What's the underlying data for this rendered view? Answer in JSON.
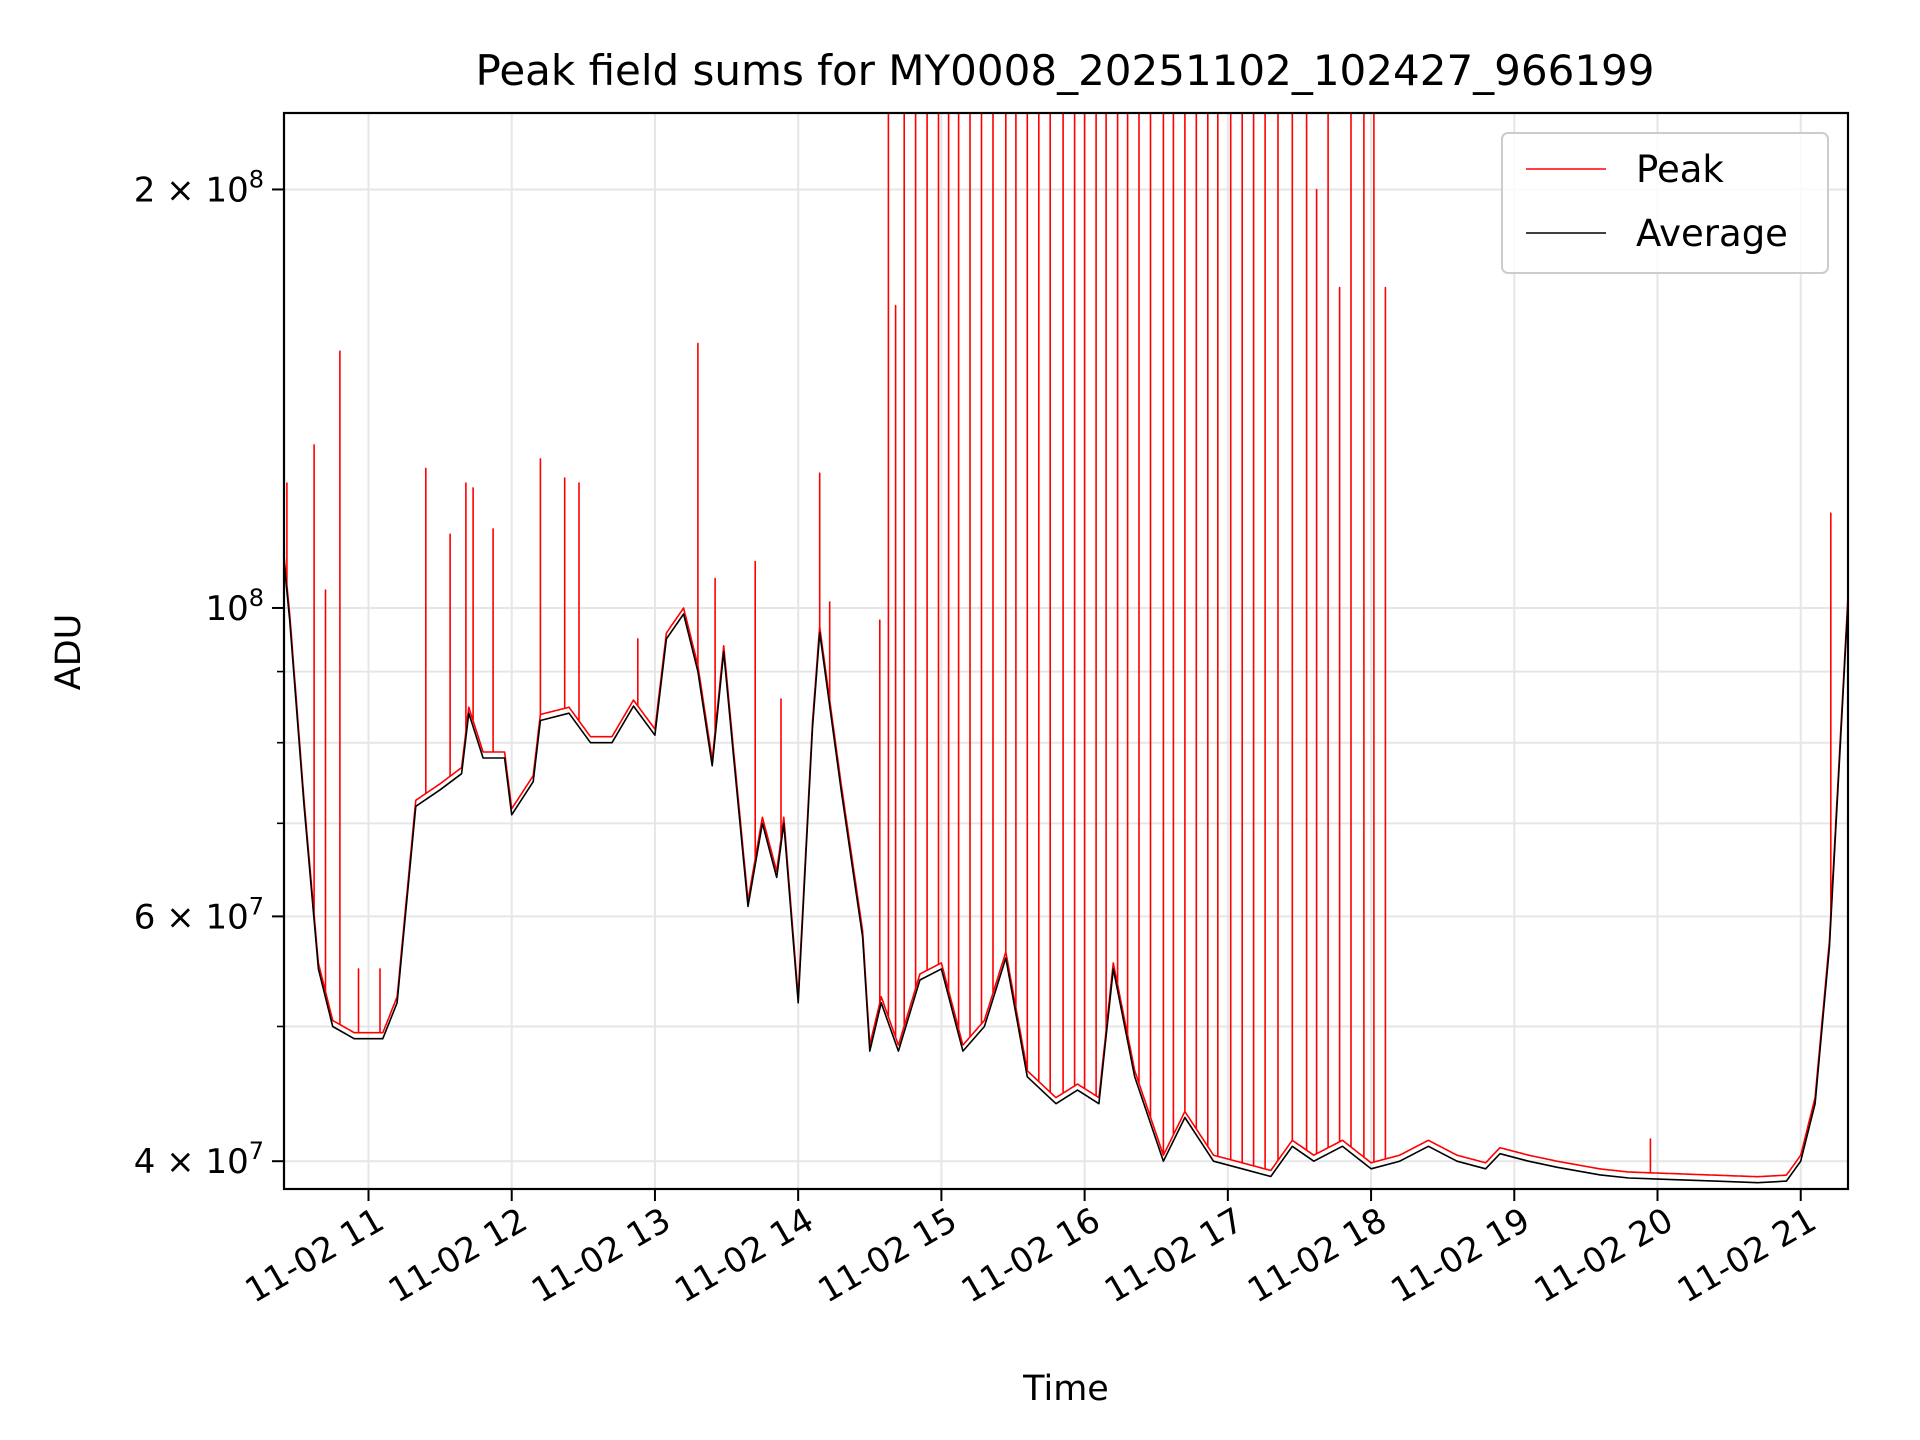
{
  "chart_data": {
    "type": "line",
    "title": "Peak field sums for MY0008_20251102_102427_966199",
    "xlabel": "Time",
    "ylabel": "ADU",
    "yscale": "log",
    "xlim_hours": [
      10.41,
      21.33
    ],
    "ylim": [
      38200000,
      227000000
    ],
    "grid": true,
    "legend_position": "top-right",
    "x_tick_labels": [
      "11-02 11",
      "11-02 12",
      "11-02 13",
      "11-02 14",
      "11-02 15",
      "11-02 16",
      "11-02 17",
      "11-02 18",
      "11-02 19",
      "11-02 20",
      "11-02 21"
    ],
    "x_tick_hours": [
      11,
      12,
      13,
      14,
      15,
      16,
      17,
      18,
      19,
      20,
      21
    ],
    "y_ticks": [
      {
        "value": 40000000,
        "mantissa": "4",
        "exponent": "7"
      },
      {
        "value": 60000000,
        "mantissa": "6",
        "exponent": "7"
      },
      {
        "value": 100000000,
        "mantissa": "",
        "exponent": "8"
      },
      {
        "value": 200000000,
        "mantissa": "2",
        "exponent": "8"
      }
    ],
    "y_minor_ticks": [
      50000000,
      70000000,
      80000000,
      90000000
    ],
    "series": [
      {
        "name": "Peak",
        "color": "#ff0000",
        "baseline_note": "Peak follows the Average curve with sharp upward spikes",
        "spikes": [
          [
            10.43,
            123000000
          ],
          [
            10.62,
            131000000
          ],
          [
            10.7,
            103000000
          ],
          [
            10.8,
            153000000
          ],
          [
            10.93,
            55000000
          ],
          [
            11.08,
            55000000
          ],
          [
            11.4,
            126000000
          ],
          [
            11.57,
            113000000
          ],
          [
            11.68,
            123000000
          ],
          [
            11.73,
            122000000
          ],
          [
            11.87,
            114000000
          ],
          [
            12.2,
            128000000
          ],
          [
            12.37,
            124000000
          ],
          [
            12.47,
            123000000
          ],
          [
            12.88,
            95000000
          ],
          [
            13.3,
            155000000
          ],
          [
            13.42,
            105000000
          ],
          [
            13.7,
            108000000
          ],
          [
            13.88,
            86000000
          ],
          [
            14.15,
            125000000
          ],
          [
            14.22,
            101000000
          ],
          [
            14.57,
            98000000
          ],
          [
            14.63,
            227000000
          ],
          [
            14.68,
            165000000
          ],
          [
            14.74,
            227000000
          ],
          [
            14.82,
            227000000
          ],
          [
            14.9,
            227000000
          ],
          [
            14.98,
            227000000
          ],
          [
            15.05,
            227000000
          ],
          [
            15.12,
            227000000
          ],
          [
            15.2,
            227000000
          ],
          [
            15.28,
            227000000
          ],
          [
            15.36,
            227000000
          ],
          [
            15.45,
            227000000
          ],
          [
            15.52,
            227000000
          ],
          [
            15.6,
            227000000
          ],
          [
            15.68,
            227000000
          ],
          [
            15.76,
            227000000
          ],
          [
            15.85,
            227000000
          ],
          [
            15.93,
            227000000
          ],
          [
            16.0,
            227000000
          ],
          [
            16.08,
            227000000
          ],
          [
            16.15,
            227000000
          ],
          [
            16.23,
            227000000
          ],
          [
            16.3,
            227000000
          ],
          [
            16.38,
            227000000
          ],
          [
            16.46,
            227000000
          ],
          [
            16.55,
            227000000
          ],
          [
            16.62,
            227000000
          ],
          [
            16.7,
            227000000
          ],
          [
            16.78,
            227000000
          ],
          [
            16.86,
            227000000
          ],
          [
            16.93,
            227000000
          ],
          [
            17.02,
            227000000
          ],
          [
            17.1,
            227000000
          ],
          [
            17.18,
            227000000
          ],
          [
            17.26,
            227000000
          ],
          [
            17.35,
            227000000
          ],
          [
            17.45,
            227000000
          ],
          [
            17.55,
            227000000
          ],
          [
            17.62,
            200000000
          ],
          [
            17.7,
            227000000
          ],
          [
            17.78,
            170000000
          ],
          [
            17.86,
            227000000
          ],
          [
            17.95,
            227000000
          ],
          [
            18.02,
            227000000
          ],
          [
            18.1,
            170000000
          ],
          [
            19.95,
            41500000
          ],
          [
            21.21,
            117000000
          ]
        ]
      },
      {
        "name": "Average",
        "color": "#000000",
        "points": [
          [
            10.41,
            108000000
          ],
          [
            10.45,
            98000000
          ],
          [
            10.55,
            72000000
          ],
          [
            10.65,
            55000000
          ],
          [
            10.75,
            50000000
          ],
          [
            10.9,
            49000000
          ],
          [
            11.1,
            49000000
          ],
          [
            11.2,
            52000000
          ],
          [
            11.33,
            72000000
          ],
          [
            11.5,
            74000000
          ],
          [
            11.65,
            76000000
          ],
          [
            11.7,
            84000000
          ],
          [
            11.8,
            78000000
          ],
          [
            11.95,
            78000000
          ],
          [
            12.0,
            71000000
          ],
          [
            12.15,
            75000000
          ],
          [
            12.2,
            83000000
          ],
          [
            12.4,
            84000000
          ],
          [
            12.55,
            80000000
          ],
          [
            12.7,
            80000000
          ],
          [
            12.85,
            85000000
          ],
          [
            13.0,
            81000000
          ],
          [
            13.08,
            95000000
          ],
          [
            13.2,
            99000000
          ],
          [
            13.3,
            90000000
          ],
          [
            13.4,
            77000000
          ],
          [
            13.48,
            93000000
          ],
          [
            13.55,
            78000000
          ],
          [
            13.65,
            61000000
          ],
          [
            13.75,
            70000000
          ],
          [
            13.85,
            64000000
          ],
          [
            13.9,
            70000000
          ],
          [
            14.0,
            52000000
          ],
          [
            14.1,
            82000000
          ],
          [
            14.15,
            96000000
          ],
          [
            14.3,
            74000000
          ],
          [
            14.45,
            58000000
          ],
          [
            14.5,
            48000000
          ],
          [
            14.58,
            52000000
          ],
          [
            14.7,
            48000000
          ],
          [
            14.85,
            54000000
          ],
          [
            15.0,
            55000000
          ],
          [
            15.15,
            48000000
          ],
          [
            15.3,
            50000000
          ],
          [
            15.45,
            56000000
          ],
          [
            15.6,
            46000000
          ],
          [
            15.8,
            44000000
          ],
          [
            15.95,
            45000000
          ],
          [
            16.1,
            44000000
          ],
          [
            16.2,
            55000000
          ],
          [
            16.35,
            46000000
          ],
          [
            16.55,
            40000000
          ],
          [
            16.7,
            43000000
          ],
          [
            16.9,
            40000000
          ],
          [
            17.1,
            39500000
          ],
          [
            17.3,
            39000000
          ],
          [
            17.45,
            41000000
          ],
          [
            17.6,
            40000000
          ],
          [
            17.8,
            41000000
          ],
          [
            18.0,
            39500000
          ],
          [
            18.2,
            40000000
          ],
          [
            18.4,
            41000000
          ],
          [
            18.6,
            40000000
          ],
          [
            18.8,
            39500000
          ],
          [
            18.9,
            40500000
          ],
          [
            19.1,
            40000000
          ],
          [
            19.3,
            39600000
          ],
          [
            19.6,
            39100000
          ],
          [
            19.8,
            38900000
          ],
          [
            20.1,
            38800000
          ],
          [
            20.4,
            38700000
          ],
          [
            20.7,
            38600000
          ],
          [
            20.9,
            38700000
          ],
          [
            21.0,
            40000000
          ],
          [
            21.1,
            44000000
          ],
          [
            21.2,
            57000000
          ],
          [
            21.33,
            101000000
          ]
        ]
      }
    ]
  }
}
